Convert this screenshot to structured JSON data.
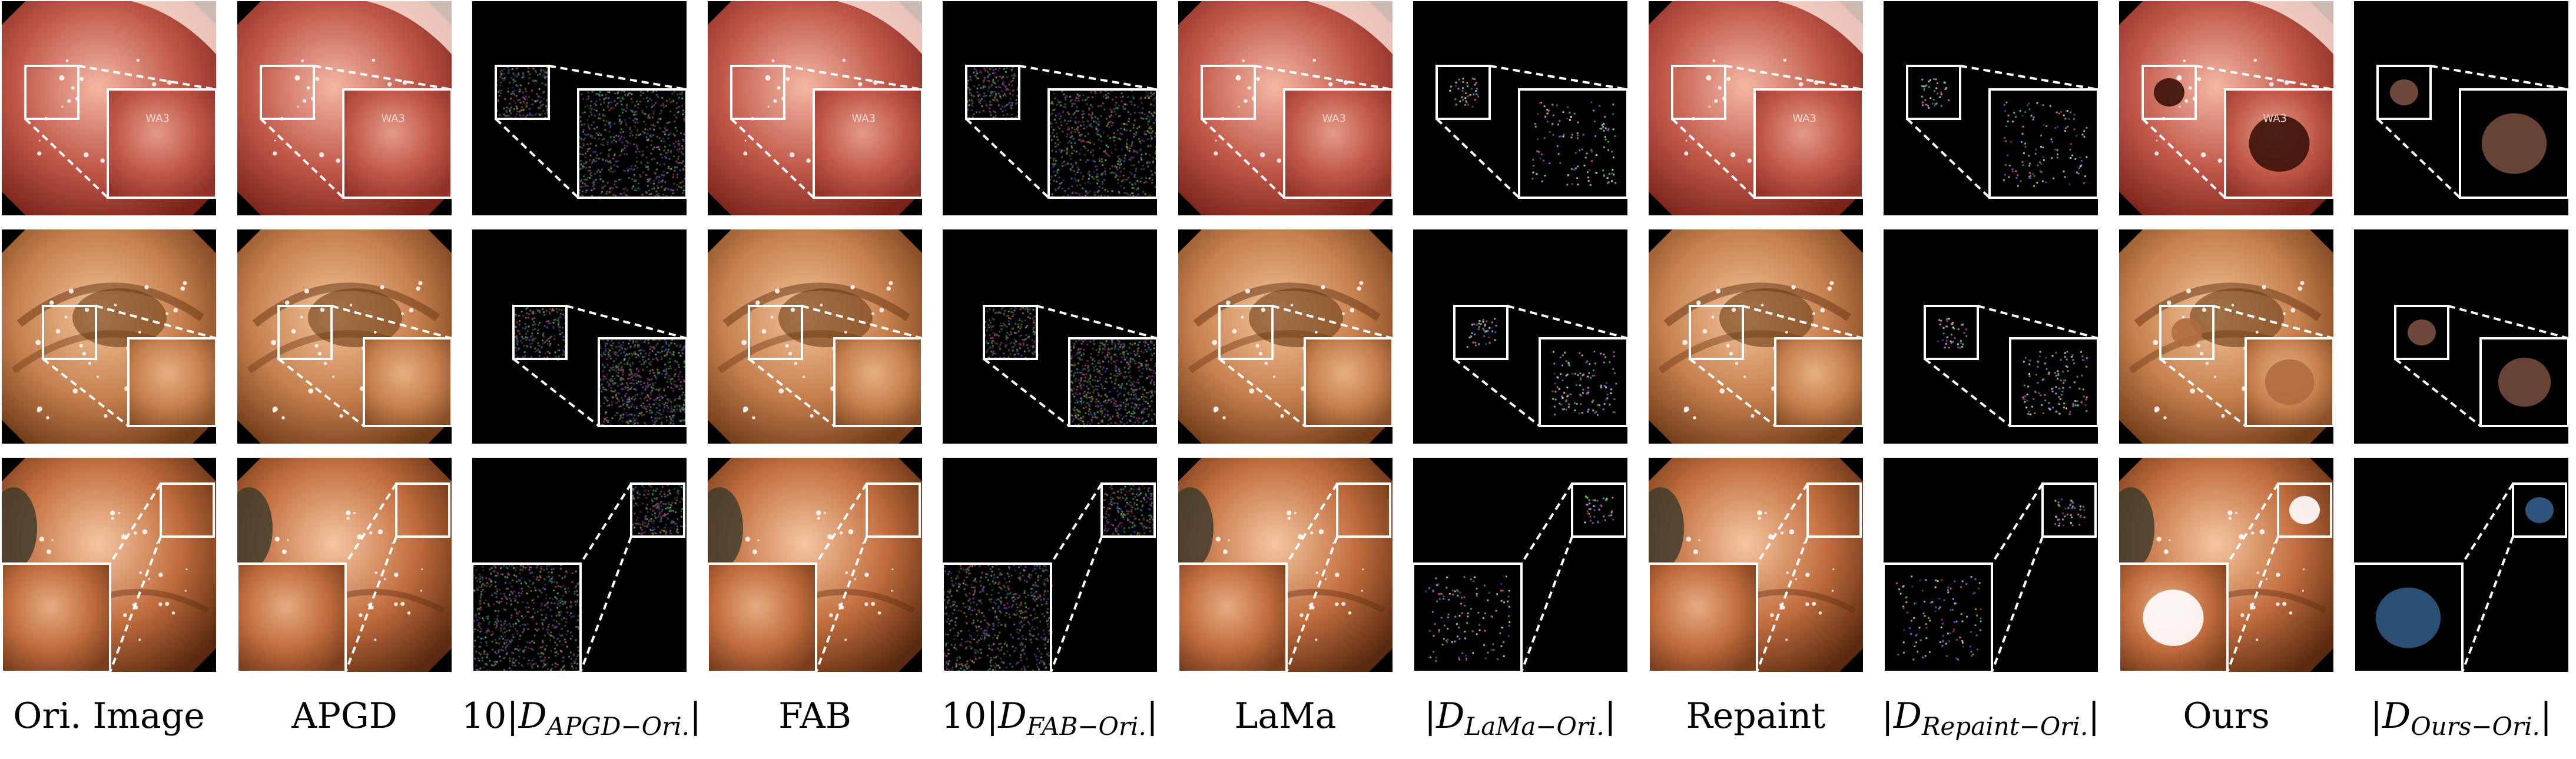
{
  "figure": {
    "columns": [
      {
        "id": "ori",
        "type": "image",
        "label": "Ori. Image"
      },
      {
        "id": "apgd",
        "type": "image",
        "label": "APGD"
      },
      {
        "id": "apgd_diff",
        "type": "diff",
        "label_prefix": "10|",
        "label_sym": "D",
        "label_sub": "APGD−Ori.",
        "label_suffix": "|",
        "noise": "uniform"
      },
      {
        "id": "fab",
        "type": "image",
        "label": "FAB"
      },
      {
        "id": "fab_diff",
        "type": "diff",
        "label_prefix": "10|",
        "label_sym": "D",
        "label_sub": "FAB−Ori.",
        "label_suffix": "|",
        "noise": "uniform"
      },
      {
        "id": "lama",
        "type": "image",
        "label": "LaMa"
      },
      {
        "id": "lama_diff",
        "type": "diff",
        "label_prefix": "|",
        "label_sym": "D",
        "label_sub": "LaMa−Ori.",
        "label_suffix": "|",
        "noise": "sparse"
      },
      {
        "id": "repaint",
        "type": "image",
        "label": "Repaint"
      },
      {
        "id": "repaint_diff",
        "type": "diff",
        "label_prefix": "|",
        "label_sym": "D",
        "label_sub": "Repaint−Ori.",
        "label_suffix": "|",
        "noise": "sparse"
      },
      {
        "id": "ours",
        "type": "image",
        "label": "Ours"
      },
      {
        "id": "ours_diff",
        "type": "diff",
        "label_prefix": "|",
        "label_sym": "D",
        "label_sub": "Ours−Ori.",
        "label_suffix": "|",
        "noise": "blob"
      }
    ],
    "rows": [
      {
        "id": "row-1",
        "scene": "stomach",
        "colors": {
          "base": "#c0584a",
          "light": "#f4b7a4",
          "dark": "#7a2218"
        },
        "image_overlay_text": "WA3"
      },
      {
        "id": "row-2",
        "scene": "intestine",
        "colors": {
          "base": "#c7804f",
          "light": "#f2c49a",
          "dark": "#6e3a17"
        }
      },
      {
        "id": "row-3",
        "scene": "colon",
        "colors": {
          "base": "#c16d3e",
          "light": "#f5c6a0",
          "dark": "#5a2a10"
        }
      }
    ]
  }
}
